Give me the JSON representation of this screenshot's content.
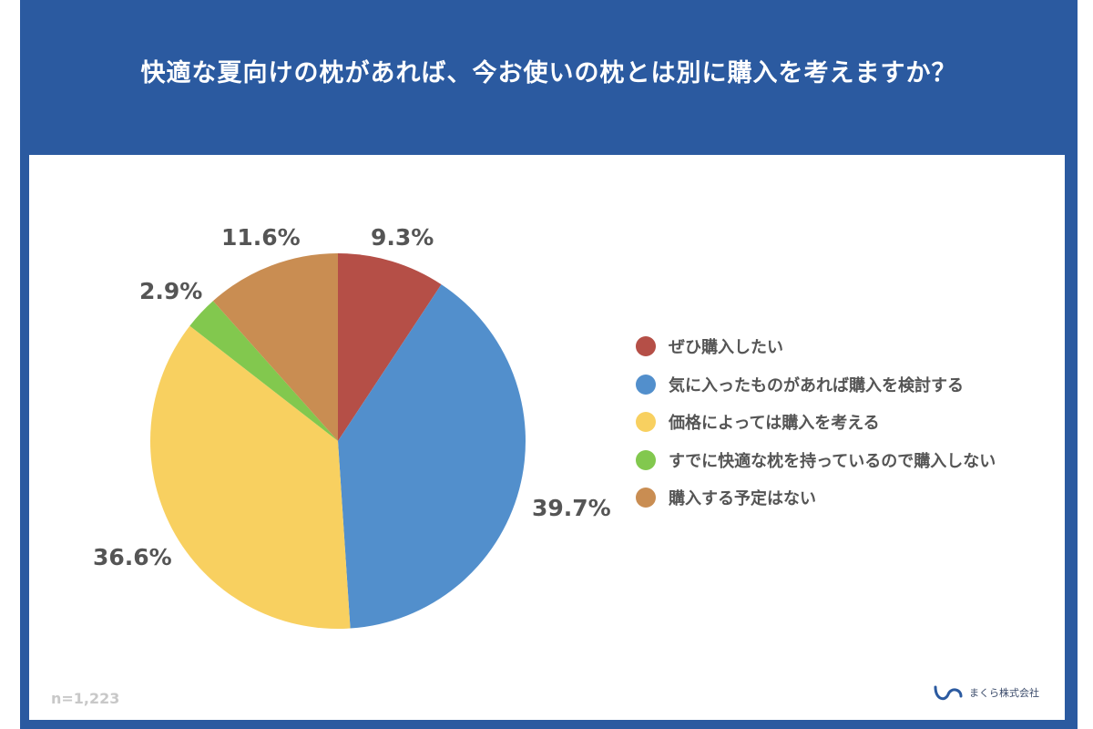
{
  "title": "快適な夏向けの枕があれば、今お使いの枕とは別に購入を考えますか？",
  "note": "n=1,223",
  "logo_text": "まくら株式会社",
  "colors": {
    "frame": "#2b5aa0"
  },
  "chart_data": {
    "type": "pie",
    "title": "快適な夏向けの枕があれば、今お使いの枕とは別に購入を考えますか？",
    "legend_position": "right",
    "slices": [
      {
        "label": "ぜひ購入したい",
        "value": 9.3,
        "display": "9.3%",
        "color": "#b54f47"
      },
      {
        "label": "気に入ったものがあれば購入を検討する",
        "value": 39.7,
        "display": "39.7%",
        "color": "#528fcc"
      },
      {
        "label": "価格によっては購入を考える",
        "value": 36.6,
        "display": "36.6%",
        "color": "#f8d060"
      },
      {
        "label": "すでに快適な枕を持っているので購入しない",
        "value": 2.9,
        "display": "2.9%",
        "color": "#82c84e"
      },
      {
        "label": "購入する予定はない",
        "value": 11.6,
        "display": "11.6%",
        "color": "#c98d52"
      }
    ]
  }
}
